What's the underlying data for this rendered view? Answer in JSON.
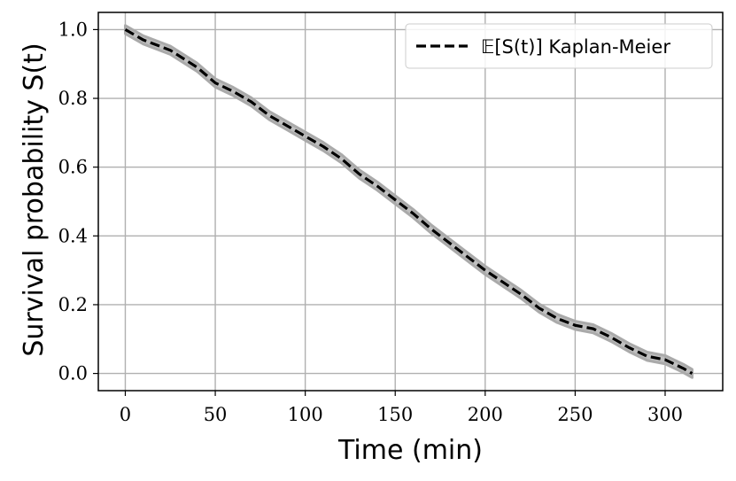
{
  "chart_data": {
    "type": "line",
    "xlabel": "Time (min)",
    "ylabel": "Survival probability S(t)",
    "xlim": [
      -15,
      332
    ],
    "ylim": [
      -0.05,
      1.05
    ],
    "xticks": [
      0,
      50,
      100,
      150,
      200,
      250,
      300
    ],
    "yticks": [
      0.0,
      0.2,
      0.4,
      0.6,
      0.8,
      1.0
    ],
    "grid": true,
    "legend_position": "top-right",
    "band_color": "#aaaaaa",
    "line_color": "#000000",
    "series": [
      {
        "name": "𝔼[S(t)] Kaplan-Meier",
        "style": "dashed",
        "x": [
          0,
          10,
          20,
          25,
          40,
          50,
          60,
          70,
          80,
          90,
          100,
          110,
          120,
          130,
          140,
          150,
          160,
          170,
          180,
          190,
          200,
          210,
          220,
          230,
          240,
          250,
          260,
          270,
          280,
          290,
          300,
          310,
          315
        ],
        "y": [
          1.0,
          0.97,
          0.95,
          0.94,
          0.89,
          0.845,
          0.82,
          0.79,
          0.75,
          0.72,
          0.69,
          0.66,
          0.625,
          0.58,
          0.545,
          0.505,
          0.465,
          0.42,
          0.38,
          0.34,
          0.3,
          0.265,
          0.23,
          0.19,
          0.16,
          0.14,
          0.13,
          0.105,
          0.075,
          0.05,
          0.04,
          0.015,
          0.0
        ],
        "band": 0.012
      }
    ]
  }
}
